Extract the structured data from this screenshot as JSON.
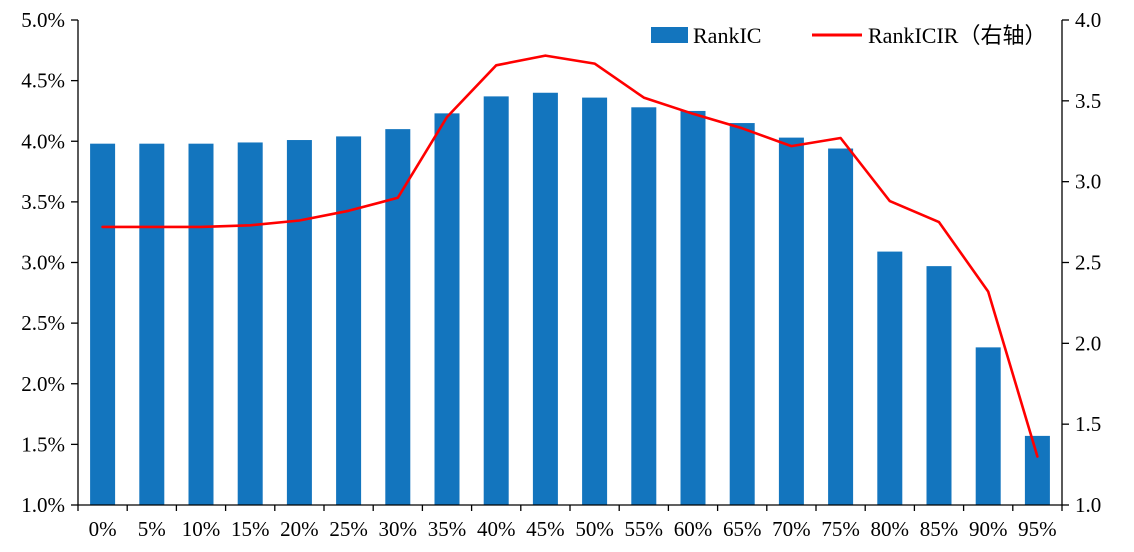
{
  "chart_data": {
    "type": "bar",
    "subtype": "combo-bar-line",
    "title": "",
    "categories": [
      "0%",
      "5%",
      "10%",
      "15%",
      "20%",
      "25%",
      "30%",
      "35%",
      "40%",
      "45%",
      "50%",
      "55%",
      "60%",
      "65%",
      "70%",
      "75%",
      "80%",
      "85%",
      "90%",
      "95%"
    ],
    "series": [
      {
        "name": "RankIC",
        "type": "bar",
        "axis": "left",
        "unit": "%",
        "values": [
          3.98,
          3.98,
          3.98,
          3.99,
          4.01,
          4.04,
          4.1,
          4.23,
          4.37,
          4.4,
          4.36,
          4.28,
          4.25,
          4.15,
          4.03,
          3.94,
          3.09,
          2.97,
          2.3,
          1.57
        ]
      },
      {
        "name": "RankICIR（右轴）",
        "type": "line",
        "axis": "right",
        "values": [
          2.72,
          2.72,
          2.72,
          2.73,
          2.76,
          2.82,
          2.9,
          3.4,
          3.72,
          3.78,
          3.73,
          3.52,
          3.42,
          3.33,
          3.22,
          3.27,
          2.88,
          2.75,
          2.32,
          1.3
        ]
      }
    ],
    "left_axis": {
      "min": 1.0,
      "max": 5.0,
      "ticks": [
        "1.0%",
        "1.5%",
        "2.0%",
        "2.5%",
        "3.0%",
        "3.5%",
        "4.0%",
        "4.5%",
        "5.0%"
      ]
    },
    "right_axis": {
      "min": 1.0,
      "max": 4.0,
      "ticks": [
        "1.0",
        "1.5",
        "2.0",
        "2.5",
        "3.0",
        "3.5",
        "4.0"
      ]
    },
    "legend_position": "top",
    "grid": false,
    "colors": {
      "bar": "#1375BE",
      "line": "#FF0000",
      "axis": "#000000"
    }
  }
}
